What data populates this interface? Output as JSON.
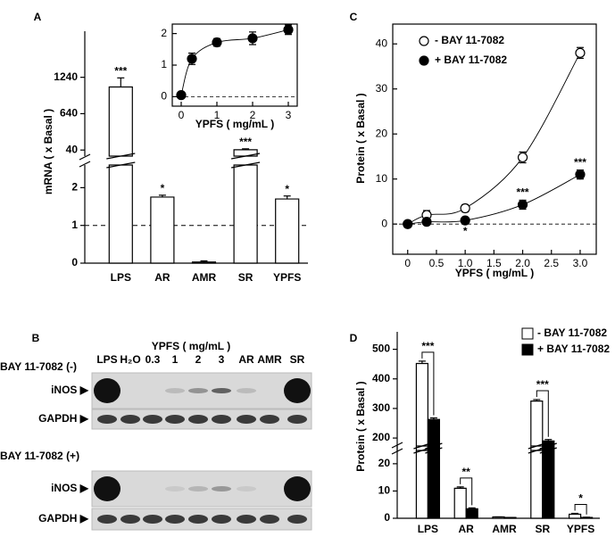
{
  "chart_data": [
    {
      "type": "bar",
      "panel": "A",
      "ylabel": "mRNA ( x Basal )",
      "categories": [
        "LPS",
        "AR",
        "AMR",
        "SR",
        "YPFS"
      ],
      "values": [
        1080,
        1.75,
        0.03,
        45,
        1.7
      ],
      "errors": [
        150,
        0.05,
        0.03,
        15,
        0.08
      ],
      "significance": [
        "***",
        "*",
        null,
        "***",
        "*"
      ],
      "color": "#ffffff",
      "reference_line": 1,
      "y_segments": [
        {
          "ylim": [
            0,
            2.6
          ],
          "yticks": [
            0,
            1,
            2
          ]
        },
        {
          "ylim": [
            -60,
            2000
          ],
          "yticks": [
            40,
            640,
            1240
          ]
        }
      ]
    },
    {
      "type": "scatter",
      "xlabel": "YPFS ( mg/mL )",
      "x": [
        0,
        0.3,
        1,
        2,
        3
      ],
      "series": [
        {
          "color": "#000000",
          "values": [
            0.05,
            1.2,
            1.72,
            1.85,
            2.12
          ],
          "errors": [
            0.05,
            0.18,
            0.12,
            0.2,
            0.15
          ]
        }
      ],
      "xlim": [
        -0.25,
        3.25
      ],
      "xticks": [
        0,
        1,
        2,
        3
      ],
      "ylim": [
        -0.3,
        2.3
      ],
      "yticks": [
        0,
        1,
        2
      ],
      "reference_line": 0
    },
    {
      "type": "scatter",
      "panel": "C",
      "xlabel": "YPFS ( mg/mL )",
      "ylabel": "Protein ( x Basal )",
      "x": [
        0,
        0.33,
        1,
        2,
        3
      ],
      "series": [
        {
          "name": "- BAY 11-7082",
          "color": "#ffffff",
          "values": [
            0,
            2,
            3.5,
            14.8,
            38
          ],
          "errors": [
            0.3,
            1,
            0.8,
            1.2,
            1.2
          ]
        },
        {
          "name": "+ BAY 11-7082",
          "color": "#000000",
          "values": [
            0,
            0.5,
            0.8,
            4.3,
            11
          ],
          "errors": [
            0.2,
            0.5,
            0.5,
            1,
            1
          ],
          "significance": [
            null,
            null,
            "*",
            "***",
            "***"
          ]
        }
      ],
      "xlim": [
        -0.26,
        3.28
      ],
      "xticks": [
        0,
        0.5,
        {
          "value": 1,
          "label": "1.0"
        },
        1.5,
        {
          "value": 2,
          "label": "2.0"
        },
        2.5,
        {
          "value": 3,
          "label": "3.0"
        }
      ],
      "ylim": [
        -6.7,
        44.4
      ],
      "yticks": [
        0,
        10,
        20,
        30,
        40
      ],
      "reference_line": 0,
      "legend": "upper left"
    },
    {
      "type": "bar",
      "panel": "D",
      "ylabel": "Protein ( x Basal )",
      "categories": [
        "LPS",
        "AR",
        "AMR",
        "SR",
        "YPFS"
      ],
      "series": [
        {
          "name": "- BAY 11-7082",
          "color": "#ffffff",
          "values": [
            452,
            11,
            0.5,
            325,
            1.5
          ],
          "errors": [
            8,
            0.5,
            0,
            5,
            0.3
          ]
        },
        {
          "name": "+ BAY 11-7082",
          "color": "#000000",
          "values": [
            263,
            3.5,
            0.3,
            190,
            0.3
          ],
          "errors": [
            5,
            0.3,
            0,
            5,
            0.1
          ]
        }
      ],
      "significance": [
        "***",
        "**",
        null,
        "***",
        "*"
      ],
      "legend": "upper right",
      "y_segments": [
        {
          "ylim": [
            0,
            26.5
          ],
          "yticks": [
            0,
            10,
            20
          ]
        },
        {
          "ylim": [
            158,
            559
          ],
          "yticks": [
            200,
            300,
            400,
            500
          ]
        }
      ]
    }
  ],
  "blot": {
    "panel": "B",
    "header": "YPFS ( mg/mL )",
    "lanes": [
      "LPS",
      "H₂O",
      "0.3",
      "1",
      "2",
      "3",
      "AR",
      "AMR",
      "SR"
    ],
    "conditions": [
      {
        "label": "BAY 11-7082 (-)",
        "rows": [
          "iNOS ▶",
          "GAPDH ▶"
        ]
      },
      {
        "label": "BAY 11-7082 (+)",
        "rows": [
          "iNOS ▶",
          "GAPDH ▶"
        ]
      }
    ]
  }
}
